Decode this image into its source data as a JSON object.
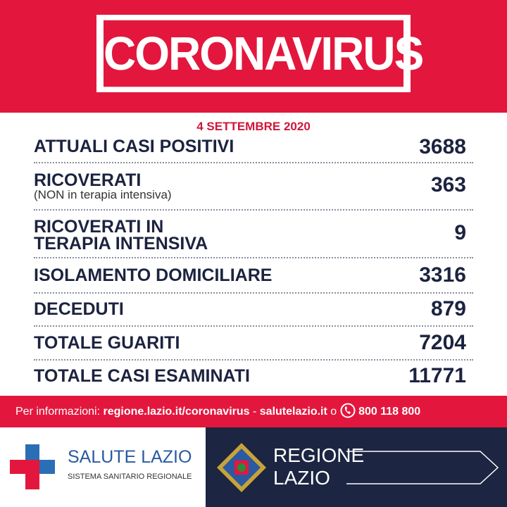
{
  "header": {
    "title": "CORONAVIRUS",
    "date": "4 SETTEMBRE 2020"
  },
  "rows": [
    {
      "label": [
        "ATTUALI CASI POSITIVI"
      ],
      "value": 3688
    },
    {
      "label": [
        "RICOVERATI"
      ],
      "note": "(NON in terapia intensiva)",
      "value": 363
    },
    {
      "label": [
        "RICOVERATI IN",
        "TERAPIA INTENSIVA"
      ],
      "value": 9
    },
    {
      "label": [
        "ISOLAMENTO DOMICILIARE"
      ],
      "value": 3316
    },
    {
      "label": [
        "DECEDUTI"
      ],
      "value": 879
    },
    {
      "label": [
        "TOTALE GUARITI"
      ],
      "value": 7204
    },
    {
      "label": [
        "TOTALE CASI ESAMINATI"
      ],
      "value": 11771
    }
  ],
  "footer": {
    "prefix": "Per informazioni:",
    "link1": "regione.lazio.it/coronavirus",
    "dash": "-",
    "link2": "salutelazio.it",
    "or": "o",
    "phone": "800 118 800"
  },
  "logos": {
    "salute": {
      "name": "SALUTE LAZIO",
      "subtitle": "SISTEMA SANITARIO REGIONALE"
    },
    "regione": {
      "lines": [
        "REGIONE",
        "LAZIO"
      ]
    }
  }
}
